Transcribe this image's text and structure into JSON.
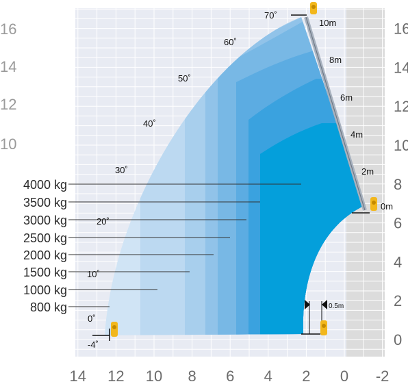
{
  "chart_data": {
    "type": "area",
    "x_ticks": [
      "14",
      "12",
      "10",
      "8",
      "6",
      "4",
      "2",
      "0",
      "-2"
    ],
    "y_ticks": [
      "0",
      "2",
      "4",
      "6",
      "8",
      "10",
      "12",
      "14",
      "16"
    ],
    "left_cut_labels": [
      "16",
      "14",
      "12",
      "10"
    ],
    "load_labels": [
      "4000 kg",
      "3500 kg",
      "3000 kg",
      "2500 kg",
      "2000 kg",
      "1500 kg",
      "1000 kg",
      "800 kg"
    ],
    "angle_labels": [
      "70˚",
      "60˚",
      "50˚",
      "40˚",
      "30˚",
      "20˚",
      "10˚",
      "0˚",
      "-4˚"
    ],
    "boom_extension_labels": [
      "10m",
      "8m",
      "6m",
      "4m",
      "2m",
      "0m"
    ],
    "offset_label": "0.5m",
    "xlim": [
      14,
      -2
    ],
    "ylim": [
      0,
      16
    ],
    "grid": true
  },
  "colors": {
    "grid_bg": "#e8ebf3",
    "grid_line": "#ffffff",
    "right_zone": "#dcdcdc",
    "zone_800": "#d0e4f5",
    "zone_1000": "#bcd9f1",
    "zone_1500": "#a8cfed",
    "zone_2000": "#91c3e9",
    "zone_2500": "#78b8e5",
    "zone_3000": "#5cace2",
    "zone_3500": "#3aa2df",
    "zone_4000": "#049fdb",
    "machine": "#f2b71c"
  }
}
